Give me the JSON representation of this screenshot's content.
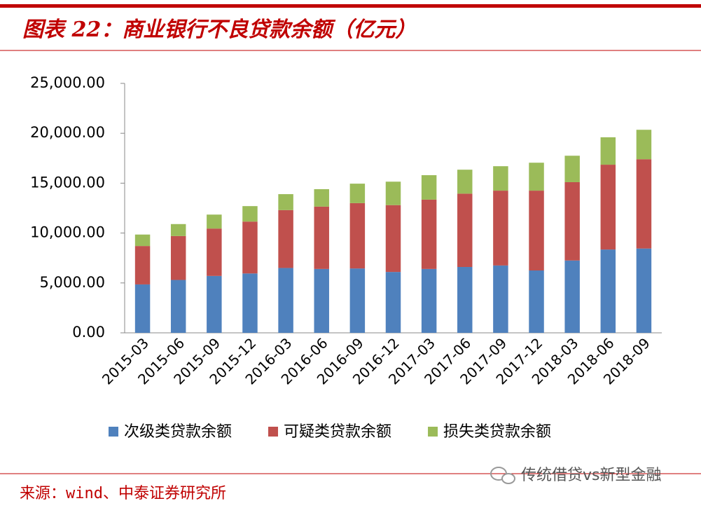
{
  "header": {
    "title": "图表 22：商业银行不良贷款余额（亿元）"
  },
  "chart_data": {
    "type": "stacked-bar",
    "categories": [
      "2015-03",
      "2015-06",
      "2015-09",
      "2015-12",
      "2016-03",
      "2016-06",
      "2016-09",
      "2016-12",
      "2017-03",
      "2017-06",
      "2017-09",
      "2017-12",
      "2018-03",
      "2018-06",
      "2018-09"
    ],
    "series": [
      {
        "name": "次级类贷款余额",
        "color": "#4f81bd",
        "values": [
          4850,
          5300,
          5700,
          5950,
          6500,
          6400,
          6450,
          6100,
          6400,
          6600,
          6750,
          6250,
          7250,
          8350,
          8450
        ]
      },
      {
        "name": "可疑类贷款余额",
        "color": "#c0504d",
        "values": [
          3850,
          4400,
          4750,
          5200,
          5800,
          6250,
          6550,
          6700,
          6950,
          7350,
          7500,
          8000,
          7850,
          8500,
          8950
        ]
      },
      {
        "name": "损失类贷款余额",
        "color": "#9bbb59",
        "values": [
          1150,
          1200,
          1400,
          1550,
          1600,
          1750,
          1950,
          2350,
          2450,
          2400,
          2450,
          2800,
          2650,
          2750,
          2950
        ]
      }
    ],
    "ylim": [
      0,
      25000
    ],
    "yticks": [
      {
        "value": 0,
        "label": "0.00"
      },
      {
        "value": 5000,
        "label": "5,000.00"
      },
      {
        "value": 10000,
        "label": "10,000.00"
      },
      {
        "value": 15000,
        "label": "15,000.00"
      },
      {
        "value": 20000,
        "label": "20,000.00"
      },
      {
        "value": 25000,
        "label": "25,000.00"
      }
    ],
    "grid": false
  },
  "footer": {
    "source": "来源：wind、中泰证券研究所",
    "watermark": "传统借贷vs新型金融"
  }
}
